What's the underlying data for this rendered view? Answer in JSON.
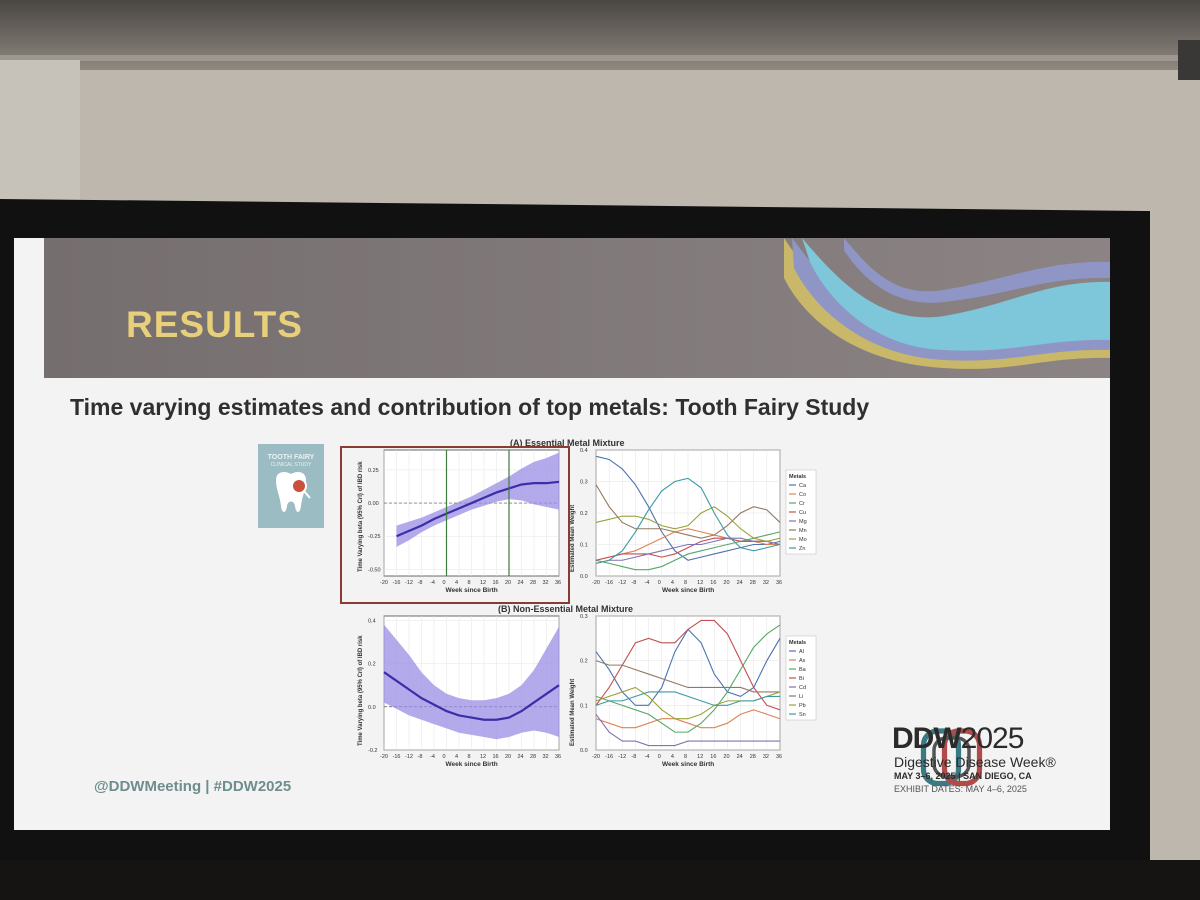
{
  "slide": {
    "header": {
      "title": "RESULTS"
    },
    "subtitle": "Time varying estimates and contribution of top metals: Tooth Fairy Study",
    "logo": {
      "line1": "TOOTH FAIRY",
      "line2": "CLINICAL STUDY",
      "icon": "tooth-icon"
    },
    "footer": {
      "handle": "@DDWMeeting | #DDW2025"
    },
    "ddw": {
      "brand": "DDW",
      "year": "2025",
      "subtitle": "Digestive Disease Week®",
      "dates": "MAY 3–6, 2025 | SAN DIEGO, CA",
      "exhibit": "EXHIBIT DATES: MAY 4–6, 2025"
    },
    "colors": {
      "header": "#807878",
      "title": "#e8cf7a",
      "band": "#7ec6da",
      "beta": "#5a4fc9",
      "band_fill": "#9a8ee6"
    }
  },
  "chart_data": [
    {
      "type": "line",
      "panel": "A-beta",
      "title": "(A) Essential Metal Mixture",
      "xlabel": "Week since Birth",
      "ylabel": "Time Varying beta (95% CrI) of IBD risk",
      "x_ticks": [
        "-20",
        "-16",
        "-12",
        "-8",
        "-4",
        "0",
        "4",
        "8",
        "12",
        "16",
        "20",
        "24",
        "28",
        "32",
        "36"
      ],
      "y_ticks": [
        "0.25",
        "0.00",
        "-0.25",
        "-0.50"
      ],
      "ylim": [
        -0.55,
        0.4
      ],
      "xlim": [
        -20,
        36
      ],
      "vlines": [
        0,
        20
      ],
      "x": [
        -16,
        -12,
        -8,
        -4,
        0,
        4,
        8,
        12,
        16,
        20,
        24,
        28,
        32,
        36
      ],
      "beta": [
        -0.25,
        -0.21,
        -0.17,
        -0.12,
        -0.08,
        -0.04,
        0.0,
        0.04,
        0.08,
        0.11,
        0.14,
        0.15,
        0.15,
        0.16
      ],
      "lower": [
        -0.33,
        -0.28,
        -0.22,
        -0.17,
        -0.13,
        -0.09,
        -0.05,
        -0.02,
        0.01,
        0.03,
        0.02,
        -0.01,
        -0.03,
        -0.05
      ],
      "upper": [
        -0.17,
        -0.14,
        -0.11,
        -0.07,
        -0.03,
        0.01,
        0.05,
        0.1,
        0.15,
        0.2,
        0.26,
        0.31,
        0.34,
        0.38
      ]
    },
    {
      "type": "line",
      "panel": "A-weights",
      "xlabel": "Week since Birth",
      "ylabel": "Estimated Mean Weight",
      "legend_title": "Metals",
      "y_ticks": [
        "0.0",
        "0.1",
        "0.2",
        "0.3",
        "0.4"
      ],
      "x_ticks": [
        "-20",
        "-16",
        "-12",
        "-8",
        "-4",
        "0",
        "4",
        "8",
        "12",
        "16",
        "20",
        "24",
        "28",
        "32",
        "36"
      ],
      "ylim": [
        0,
        0.4
      ],
      "x": [
        -20,
        -16,
        -12,
        -8,
        -4,
        0,
        4,
        8,
        12,
        16,
        20,
        24,
        28,
        32,
        36
      ],
      "series": [
        {
          "name": "Ca",
          "color": "#4c72b0",
          "values": [
            0.38,
            0.37,
            0.34,
            0.29,
            0.22,
            0.14,
            0.08,
            0.05,
            0.06,
            0.07,
            0.08,
            0.09,
            0.1,
            0.1,
            0.11
          ]
        },
        {
          "name": "Co",
          "color": "#dd8452",
          "values": [
            0.05,
            0.06,
            0.07,
            0.08,
            0.1,
            0.12,
            0.14,
            0.15,
            0.14,
            0.13,
            0.12,
            0.11,
            0.11,
            0.1,
            0.1
          ]
        },
        {
          "name": "Cr",
          "color": "#55a868",
          "values": [
            0.05,
            0.04,
            0.03,
            0.02,
            0.02,
            0.03,
            0.05,
            0.07,
            0.08,
            0.09,
            0.1,
            0.11,
            0.12,
            0.13,
            0.14
          ]
        },
        {
          "name": "Cu",
          "color": "#c44e52",
          "values": [
            0.05,
            0.06,
            0.07,
            0.07,
            0.07,
            0.06,
            0.07,
            0.09,
            0.11,
            0.12,
            0.12,
            0.11,
            0.11,
            0.11,
            0.1
          ]
        },
        {
          "name": "Mg",
          "color": "#8172b2",
          "values": [
            0.04,
            0.05,
            0.05,
            0.06,
            0.07,
            0.08,
            0.09,
            0.1,
            0.1,
            0.11,
            0.12,
            0.12,
            0.11,
            0.11,
            0.1
          ]
        },
        {
          "name": "Mn",
          "color": "#937860",
          "values": [
            0.29,
            0.22,
            0.17,
            0.15,
            0.15,
            0.15,
            0.14,
            0.13,
            0.12,
            0.13,
            0.16,
            0.2,
            0.22,
            0.21,
            0.17
          ]
        },
        {
          "name": "Mo",
          "color": "#9aa23b",
          "values": [
            0.17,
            0.18,
            0.19,
            0.19,
            0.18,
            0.16,
            0.15,
            0.16,
            0.2,
            0.22,
            0.19,
            0.15,
            0.12,
            0.11,
            0.12
          ]
        },
        {
          "name": "Zn",
          "color": "#3c9aa6",
          "values": [
            0.04,
            0.05,
            0.08,
            0.14,
            0.21,
            0.27,
            0.3,
            0.31,
            0.28,
            0.2,
            0.13,
            0.09,
            0.08,
            0.09,
            0.1
          ]
        }
      ]
    },
    {
      "type": "line",
      "panel": "B-beta",
      "title": "(B) Non-Essential Metal Mixture",
      "xlabel": "Week since Birth",
      "ylabel": "Time Varying beta (95% CrI) of IBD risk",
      "x_ticks": [
        "-20",
        "-16",
        "-12",
        "-8",
        "-4",
        "0",
        "4",
        "8",
        "12",
        "16",
        "20",
        "24",
        "28",
        "32",
        "36"
      ],
      "y_ticks": [
        "0.4",
        "0.2",
        "0.0",
        "-0.2"
      ],
      "ylim": [
        -0.2,
        0.42
      ],
      "xlim": [
        -20,
        36
      ],
      "x": [
        -20,
        -16,
        -12,
        -8,
        -4,
        0,
        4,
        8,
        12,
        16,
        20,
        24,
        28,
        32,
        36
      ],
      "beta": [
        0.16,
        0.12,
        0.08,
        0.04,
        0.01,
        -0.02,
        -0.04,
        -0.05,
        -0.06,
        -0.06,
        -0.05,
        -0.02,
        0.02,
        0.06,
        0.1
      ],
      "lower": [
        0.02,
        -0.01,
        -0.04,
        -0.06,
        -0.08,
        -0.1,
        -0.12,
        -0.13,
        -0.14,
        -0.15,
        -0.14,
        -0.12,
        -0.11,
        -0.12,
        -0.14
      ],
      "upper": [
        0.38,
        0.31,
        0.24,
        0.16,
        0.1,
        0.06,
        0.04,
        0.03,
        0.03,
        0.04,
        0.06,
        0.1,
        0.17,
        0.27,
        0.37
      ]
    },
    {
      "type": "line",
      "panel": "B-weights",
      "xlabel": "Week since Birth",
      "ylabel": "Estimated Mean Weight",
      "legend_title": "Metals",
      "y_ticks": [
        "0.0",
        "0.1",
        "0.2",
        "0.3"
      ],
      "x_ticks": [
        "-20",
        "-16",
        "-12",
        "-8",
        "-4",
        "0",
        "4",
        "8",
        "12",
        "16",
        "20",
        "24",
        "28",
        "32",
        "36"
      ],
      "ylim": [
        0,
        0.3
      ],
      "x": [
        -20,
        -16,
        -12,
        -8,
        -4,
        0,
        4,
        8,
        12,
        16,
        20,
        24,
        28,
        32,
        36
      ],
      "series": [
        {
          "name": "Al",
          "color": "#4c72b0",
          "values": [
            0.22,
            0.18,
            0.13,
            0.1,
            0.1,
            0.14,
            0.22,
            0.27,
            0.24,
            0.17,
            0.13,
            0.12,
            0.14,
            0.2,
            0.25
          ]
        },
        {
          "name": "As",
          "color": "#dd8452",
          "values": [
            0.07,
            0.06,
            0.05,
            0.05,
            0.06,
            0.07,
            0.07,
            0.06,
            0.05,
            0.05,
            0.06,
            0.08,
            0.09,
            0.08,
            0.07
          ]
        },
        {
          "name": "Ba",
          "color": "#55a868",
          "values": [
            0.12,
            0.11,
            0.1,
            0.09,
            0.08,
            0.06,
            0.04,
            0.04,
            0.06,
            0.09,
            0.13,
            0.18,
            0.23,
            0.26,
            0.28
          ]
        },
        {
          "name": "Bi",
          "color": "#c44e52",
          "values": [
            0.1,
            0.14,
            0.19,
            0.24,
            0.25,
            0.24,
            0.24,
            0.27,
            0.29,
            0.29,
            0.26,
            0.2,
            0.14,
            0.1,
            0.09
          ]
        },
        {
          "name": "Cd",
          "color": "#8172b2",
          "values": [
            0.08,
            0.04,
            0.02,
            0.02,
            0.01,
            0.01,
            0.01,
            0.02,
            0.02,
            0.02,
            0.02,
            0.02,
            0.02,
            0.02,
            0.02
          ]
        },
        {
          "name": "Li",
          "color": "#937860",
          "values": [
            0.2,
            0.19,
            0.19,
            0.18,
            0.17,
            0.16,
            0.15,
            0.14,
            0.14,
            0.14,
            0.14,
            0.14,
            0.13,
            0.13,
            0.13
          ]
        },
        {
          "name": "Pb",
          "color": "#9aa23b",
          "values": [
            0.11,
            0.12,
            0.13,
            0.14,
            0.12,
            0.09,
            0.07,
            0.07,
            0.08,
            0.1,
            0.11,
            0.11,
            0.11,
            0.12,
            0.13
          ]
        },
        {
          "name": "Sn",
          "color": "#3c9aa6",
          "values": [
            0.1,
            0.11,
            0.11,
            0.12,
            0.13,
            0.13,
            0.13,
            0.12,
            0.11,
            0.1,
            0.1,
            0.11,
            0.11,
            0.12,
            0.12
          ]
        }
      ]
    }
  ]
}
